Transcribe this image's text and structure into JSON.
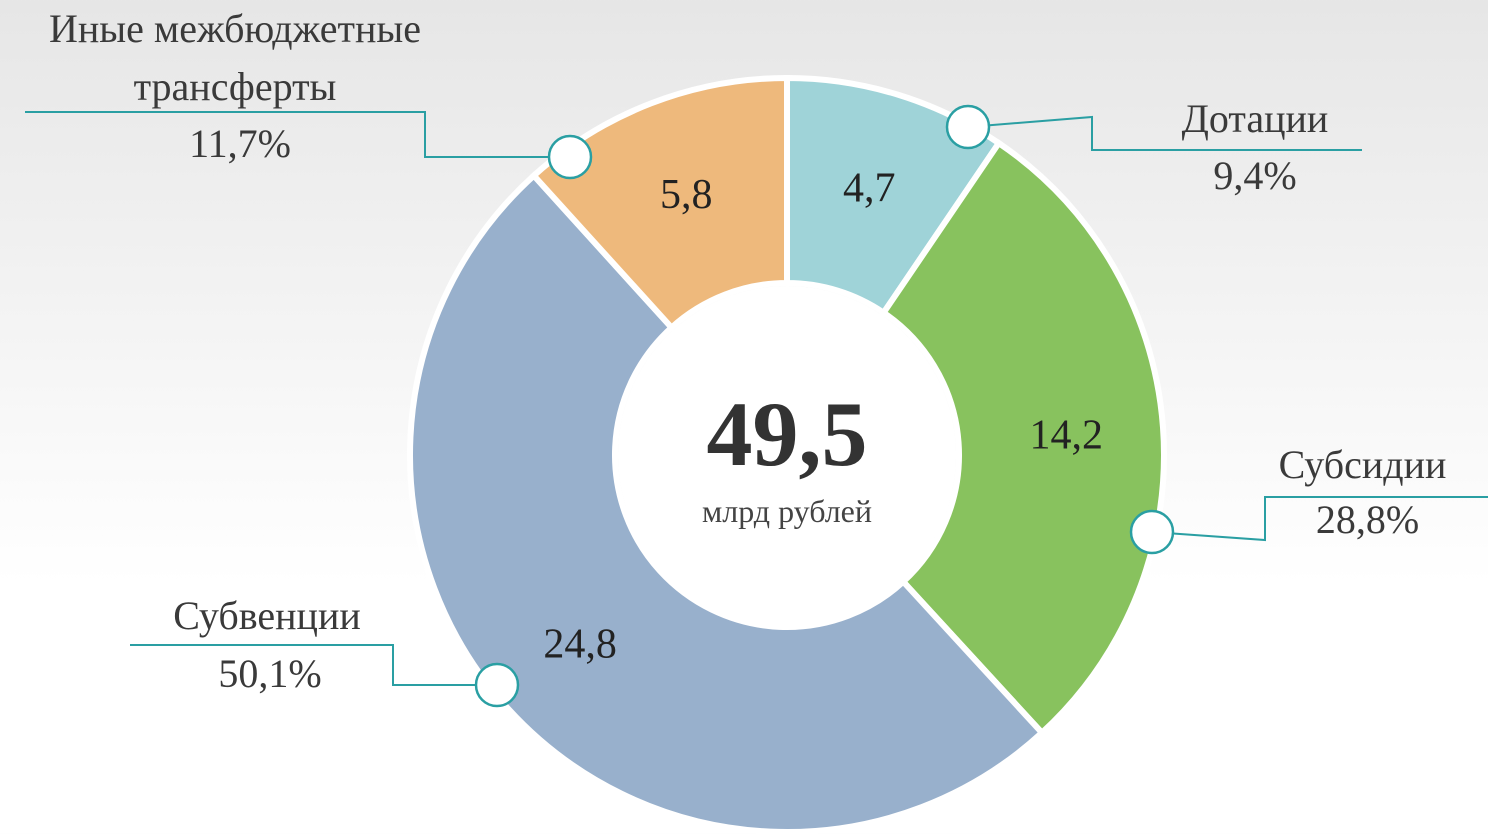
{
  "chart_data": {
    "type": "donut",
    "categories": [
      "Дотации",
      "Субсидии",
      "Субвенции",
      "Иные межбюджетные трансферты"
    ],
    "values": [
      4.7,
      14.2,
      24.8,
      5.8
    ],
    "value_labels": [
      "4,7",
      "14,2",
      "24,8",
      "5,8"
    ],
    "percents": [
      9.4,
      28.8,
      50.1,
      11.7
    ],
    "percent_labels": [
      "9,4%",
      "28,8%",
      "50,1%",
      "11,7%"
    ],
    "colors": [
      "#9fd3d8",
      "#88c25e",
      "#98b0cc",
      "#eeb97c"
    ],
    "total": {
      "value": 49.5,
      "label": "49,5"
    },
    "total_unit": "млрд рублей"
  }
}
